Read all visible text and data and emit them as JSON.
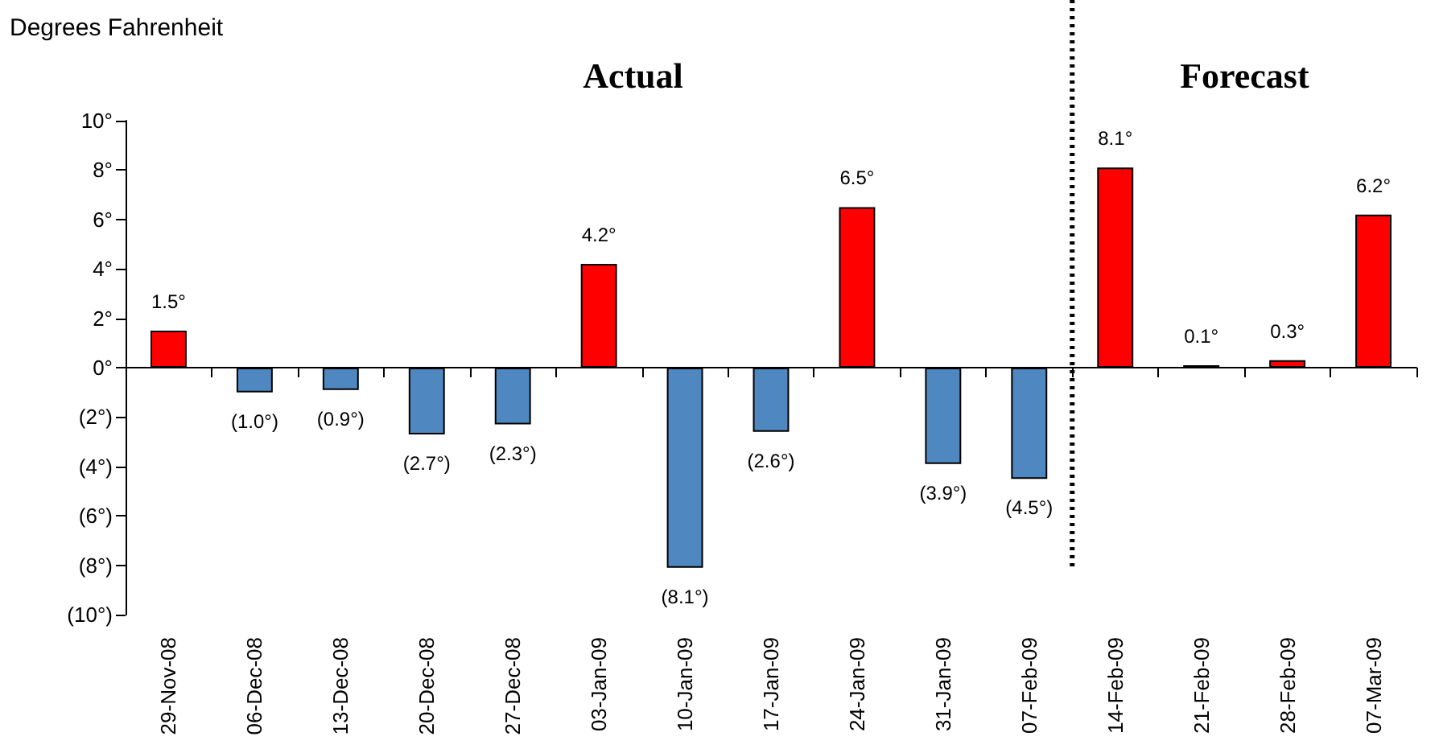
{
  "chart_data": {
    "type": "bar",
    "ylabel": "Degrees Fahrenheit",
    "categories": [
      "29-Nov-08",
      "06-Dec-08",
      "13-Dec-08",
      "20-Dec-08",
      "27-Dec-08",
      "03-Jan-09",
      "10-Jan-09",
      "17-Jan-09",
      "24-Jan-09",
      "31-Jan-09",
      "07-Feb-09",
      "14-Feb-09",
      "21-Feb-09",
      "28-Feb-09",
      "07-Mar-09"
    ],
    "values": [
      1.5,
      -1.0,
      -0.9,
      -2.7,
      -2.3,
      4.2,
      -8.1,
      -2.6,
      6.5,
      -3.9,
      -4.5,
      8.1,
      0.1,
      0.3,
      6.2
    ],
    "colors": [
      "#ff0000",
      "#4f88c0",
      "#4f88c0",
      "#4f88c0",
      "#4f88c0",
      "#ff0000",
      "#4f88c0",
      "#4f88c0",
      "#ff0000",
      "#4f88c0",
      "#4f88c0",
      "#ff0000",
      "#ff0000",
      "#ff0000",
      "#ff0000"
    ],
    "value_labels": [
      "1.5°",
      "(1.0°)",
      "(0.9°)",
      "(2.7°)",
      "(2.3°)",
      "4.2°",
      "(8.1°)",
      "(2.6°)",
      "6.5°",
      "(3.9°)",
      "(4.5°)",
      "8.1°",
      "0.1°",
      "0.3°",
      "6.2°"
    ],
    "ylim": [
      -10,
      10
    ],
    "yticks": [
      {
        "value": -10,
        "label": "(10°)"
      },
      {
        "value": -8,
        "label": "(8°)"
      },
      {
        "value": -6,
        "label": "(6°)"
      },
      {
        "value": -4,
        "label": "(4°)"
      },
      {
        "value": -2,
        "label": "(2°)"
      },
      {
        "value": 0,
        "label": "0°"
      },
      {
        "value": 2,
        "label": "2°"
      },
      {
        "value": 4,
        "label": "4°"
      },
      {
        "value": 6,
        "label": "6°"
      },
      {
        "value": 8,
        "label": "8°"
      },
      {
        "value": 10,
        "label": "10°"
      }
    ],
    "ref_lines": [
      {
        "axis": "x",
        "value": "14-Feb-09",
        "line_style": "dotted",
        "color": "#000000"
      }
    ],
    "annotations": [
      "Actual",
      "Forecast"
    ],
    "grid": false
  }
}
